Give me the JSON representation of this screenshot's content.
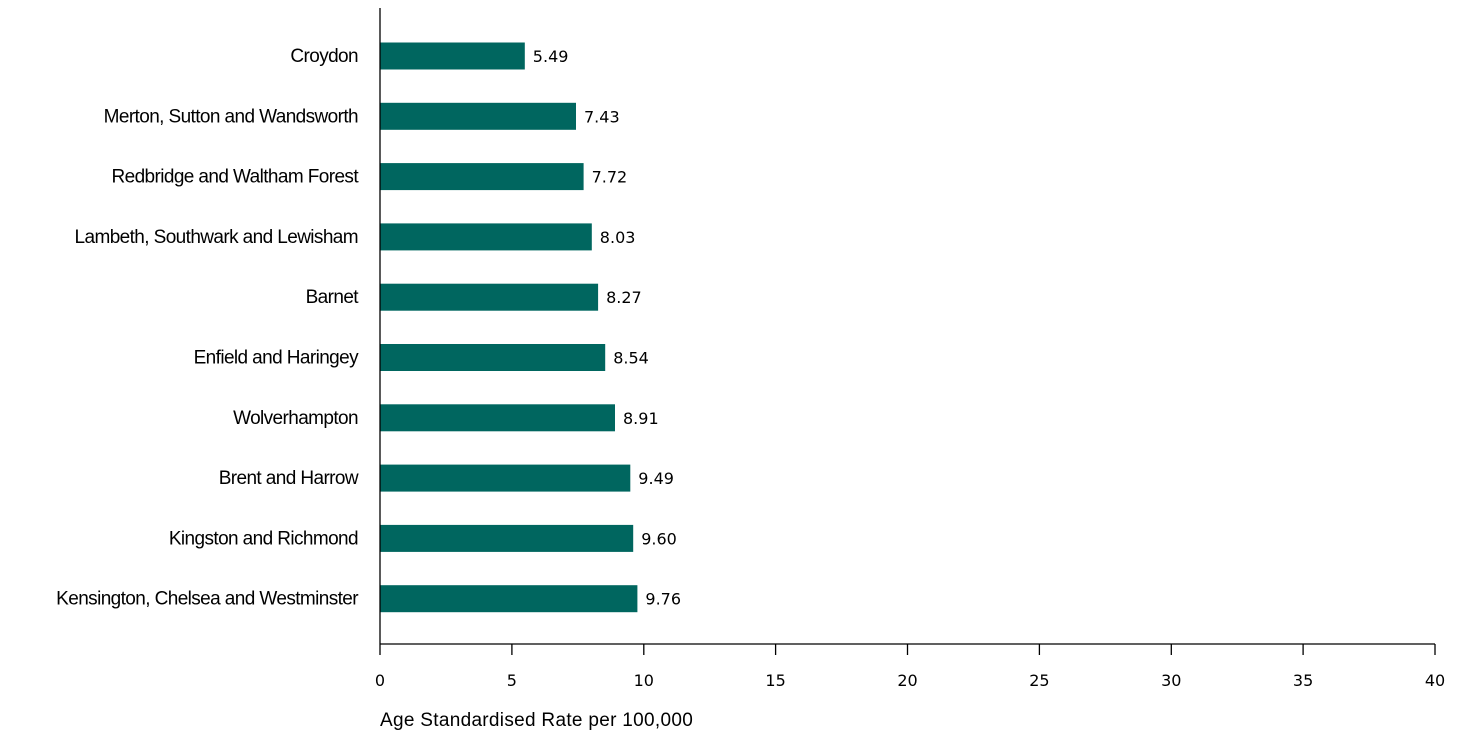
{
  "chart_data": {
    "type": "bar",
    "orientation": "horizontal",
    "categories": [
      "Croydon",
      "Merton, Sutton and Wandsworth",
      "Redbridge and Waltham Forest",
      "Lambeth, Southwark and Lewisham",
      "Barnet",
      "Enfield and Haringey",
      "Wolverhampton",
      "Brent and Harrow",
      "Kingston and Richmond",
      "Kensington, Chelsea and Westminster"
    ],
    "values": [
      5.49,
      7.43,
      7.72,
      8.03,
      8.27,
      8.54,
      8.91,
      9.49,
      9.6,
      9.76
    ],
    "value_labels": [
      "5.49",
      "7.43",
      "7.72",
      "8.03",
      "8.27",
      "8.54",
      "8.91",
      "9.49",
      "9.60",
      "9.76"
    ],
    "xlabel": "Age Standardised Rate per 100,000",
    "xlim": [
      0,
      40
    ],
    "xticks": [
      0,
      5,
      10,
      15,
      20,
      25,
      30,
      35,
      40
    ],
    "grid": false,
    "colors": {
      "bar": "#00665f",
      "axis": "#000000",
      "text": "#000000"
    }
  }
}
